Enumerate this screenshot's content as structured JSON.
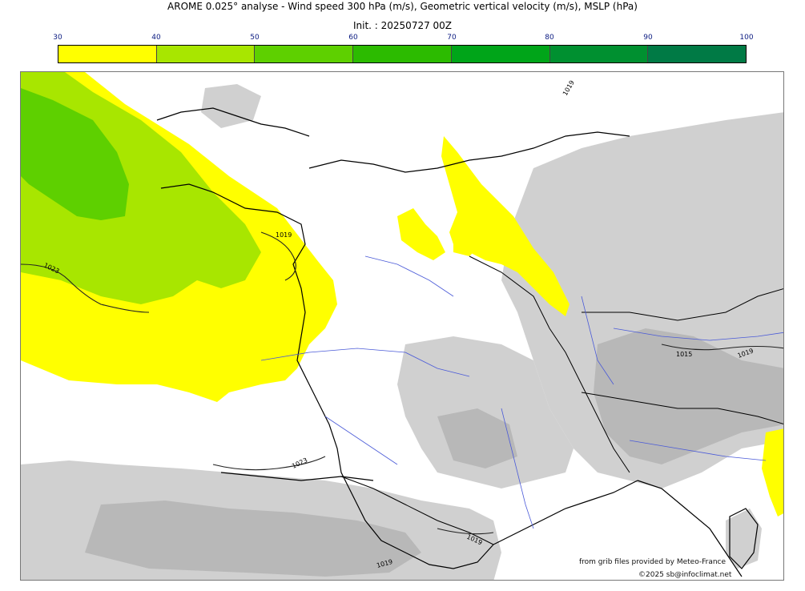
{
  "title": "AROME 0.025° analyse - Wind speed 300 hPa (m/s), Geometric vertical velocity (m/s), MSLP (hPa)",
  "init": "Init. : 20250727 00Z",
  "colorbar": {
    "ticks": [
      "30",
      "40",
      "50",
      "60",
      "70",
      "80",
      "90",
      "100"
    ],
    "colors": [
      "#ffff00",
      "#a8e600",
      "#5ed000",
      "#2cbb00",
      "#00a519",
      "#009030",
      "#007a45"
    ]
  },
  "isobar_labels": [
    "1023",
    "1019",
    "1023",
    "1019",
    "1015",
    "1019",
    "1019",
    "1019"
  ],
  "credits": {
    "source": "from grib files provided by Meteo-France",
    "copyright": "©2025 sb@infoclimat.net"
  },
  "colors": {
    "coast": "#000000",
    "rivers": "#4a5ad8",
    "vertical_velocity_gray": "#c8c8c8",
    "frame": "#777777"
  }
}
